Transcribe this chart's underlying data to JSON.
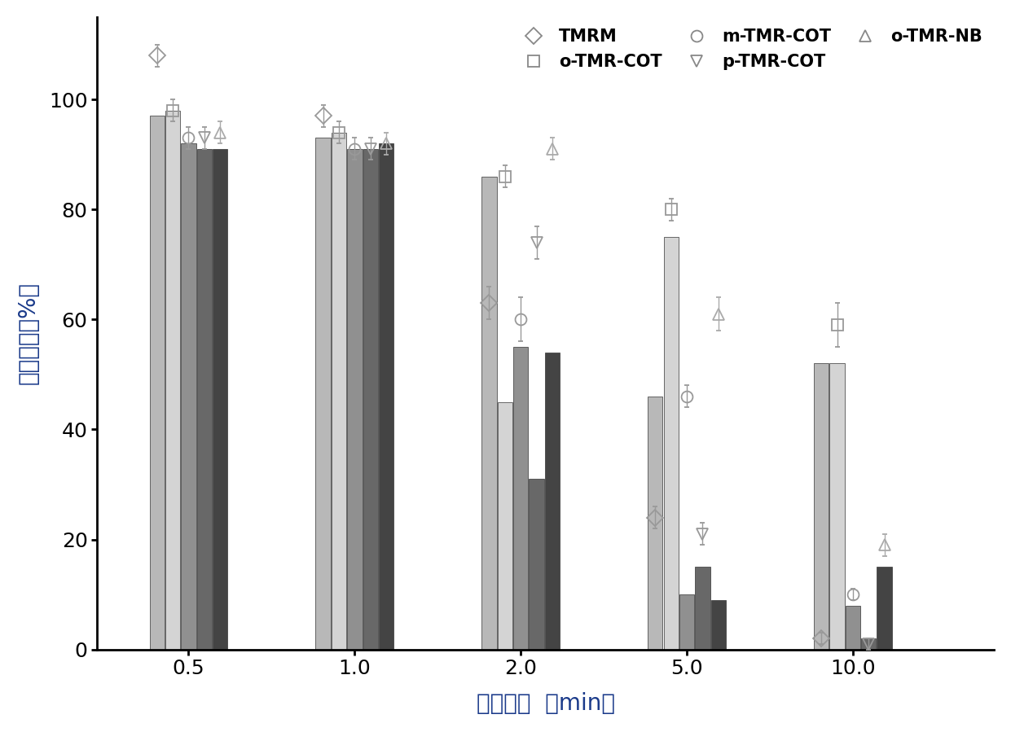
{
  "x_ticklabels": [
    "0.5",
    "1.0",
    "2.0",
    "5.0",
    "10.0"
  ],
  "xlabel": "光照时间  （min）",
  "ylabel": "细胞活性（%）",
  "ylim": [
    0,
    115
  ],
  "yticks": [
    0,
    20,
    40,
    60,
    80,
    100
  ],
  "series_names": [
    "TMRM",
    "o-TMR-COT",
    "m-TMR-COT",
    "p-TMR-COT",
    "o-TMR-NB"
  ],
  "markers": [
    "D",
    "s",
    "o",
    "v",
    "^"
  ],
  "bar_colors": [
    "#b8b8b8",
    "#d4d4d4",
    "#909090",
    "#686868",
    "#444444"
  ],
  "marker_edge_colors": [
    "#999999",
    "#999999",
    "#999999",
    "#999999",
    "#aaaaaa"
  ],
  "bar_values": [
    [
      97,
      93,
      86,
      46,
      52
    ],
    [
      98,
      94,
      45,
      75,
      52
    ],
    [
      92,
      91,
      55,
      10,
      8
    ],
    [
      91,
      91,
      31,
      15,
      2
    ],
    [
      91,
      92,
      54,
      9,
      15
    ]
  ],
  "point_values": [
    [
      108,
      97,
      63,
      24,
      2
    ],
    [
      98,
      94,
      86,
      80,
      59
    ],
    [
      93,
      91,
      60,
      46,
      10
    ],
    [
      93,
      91,
      74,
      21,
      1
    ],
    [
      94,
      92,
      91,
      61,
      19
    ]
  ],
  "point_errors": [
    [
      2,
      2,
      3,
      2,
      1
    ],
    [
      2,
      2,
      2,
      2,
      4
    ],
    [
      2,
      2,
      4,
      2,
      1
    ],
    [
      2,
      2,
      3,
      2,
      1
    ],
    [
      2,
      2,
      2,
      3,
      2
    ]
  ],
  "n_groups": 5,
  "group_centers": [
    1,
    2,
    3,
    4,
    5
  ],
  "bar_width": 0.09,
  "bar_gap": 0.005,
  "background_color": "#ffffff",
  "tick_fontsize": 18,
  "label_fontsize": 20,
  "legend_fontsize": 15,
  "marker_size": 10,
  "legend_bold": true
}
